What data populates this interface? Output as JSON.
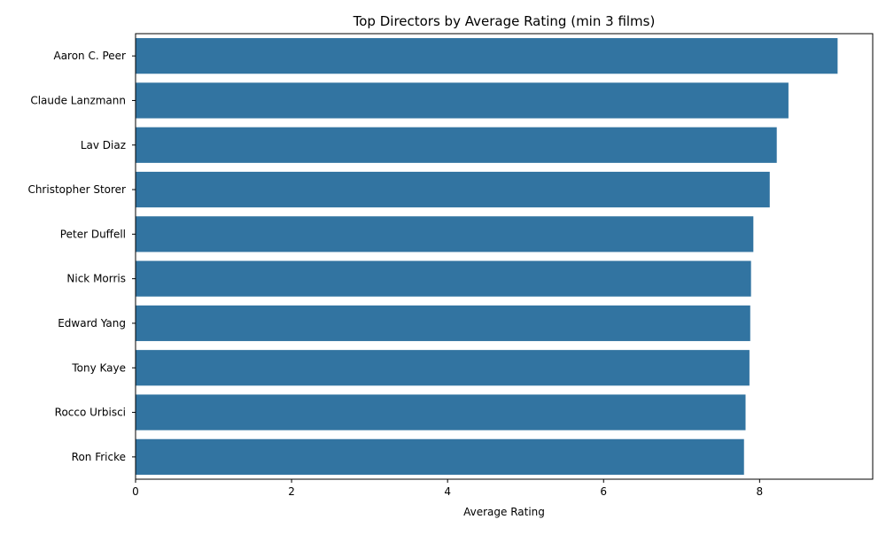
{
  "chart_data": {
    "type": "bar",
    "orientation": "horizontal",
    "title": "Top Directors by Average Rating (min 3 films)",
    "xlabel": "Average Rating",
    "ylabel": "",
    "categories": [
      "Aaron C. Peer",
      "Claude Lanzmann",
      "Lav Diaz",
      "Christopher Storer",
      "Peter Duffell",
      "Nick Morris",
      "Edward Yang",
      "Tony Kaye",
      "Rocco Urbisci",
      "Ron Fricke"
    ],
    "values": [
      9.0,
      8.37,
      8.22,
      8.13,
      7.92,
      7.89,
      7.88,
      7.87,
      7.82,
      7.8
    ],
    "xlim": [
      0,
      9.45
    ],
    "xticks": [
      "0",
      "2",
      "4",
      "6",
      "8"
    ],
    "grid": false,
    "bar_color": "#3274a1"
  }
}
